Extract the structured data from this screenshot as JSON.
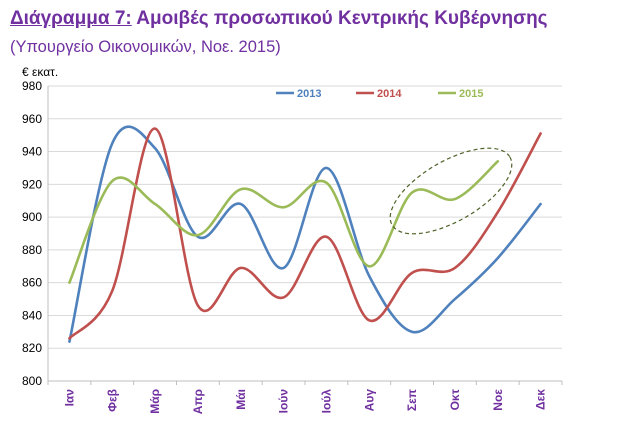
{
  "header": {
    "title_prefix": "Διάγραμμα 7:",
    "title_text": "Αμοιβές προσωπικού Κεντρικής Κυβέρνησης",
    "subtitle": "(Υπουργείο Οικονομικών, Νοε. 2015)"
  },
  "colors": {
    "title": "#7030a0",
    "s2013": "#4f81bd",
    "s2014": "#c0504d",
    "s2015": "#9bbb59",
    "ellipse": "#4f6228",
    "grid": "#d9d9d9",
    "month_labels": "#7030a0"
  },
  "chart_data": {
    "type": "line",
    "ylabel": "€ εκατ.",
    "ylim": [
      800,
      980
    ],
    "yticks": [
      800,
      820,
      840,
      860,
      880,
      900,
      920,
      940,
      960,
      980
    ],
    "grid": "horizontal",
    "legend_position": "top-right",
    "categories": [
      "Ιαν",
      "Φεβ",
      "Μάρ",
      "Απρ",
      "Μάι",
      "Ιούν",
      "Ιούλ",
      "Αυγ",
      "Σεπ",
      "Οκτ",
      "Νοε",
      "Δεκ"
    ],
    "series": [
      {
        "name": "2013",
        "color": "#4f81bd",
        "values": [
          824,
          945,
          942,
          888,
          908,
          869,
          930,
          864,
          830,
          850,
          875,
          908
        ]
      },
      {
        "name": "2014",
        "color": "#c0504d",
        "values": [
          826,
          855,
          954,
          846,
          869,
          851,
          888,
          837,
          866,
          869,
          903,
          951
        ]
      },
      {
        "name": "2015",
        "color": "#9bbb59",
        "values": [
          860,
          922,
          908,
          889,
          917,
          906,
          921,
          870,
          915,
          911,
          934,
          null
        ]
      }
    ],
    "annotation": {
      "type": "dashed-ellipse",
      "around": "2015 Σεπ–Νοε"
    }
  }
}
